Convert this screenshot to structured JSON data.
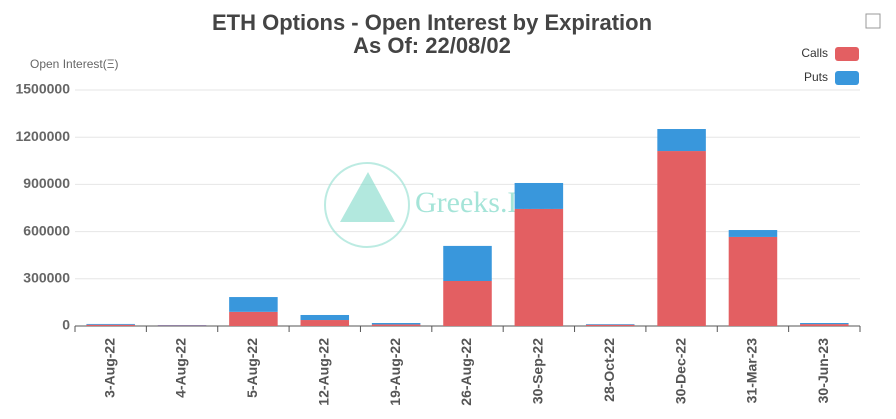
{
  "chart_data": {
    "type": "stacked_bar",
    "title": "ETH Options - Open Interest by Expiration",
    "subtitle": "As Of: 22/08/02",
    "y_label": "Open Interest(Ξ)",
    "watermark": "Greeks.Live",
    "categories": [
      "3-Aug-22",
      "4-Aug-22",
      "5-Aug-22",
      "12-Aug-22",
      "19-Aug-22",
      "26-Aug-22",
      "30-Sep-22",
      "28-Oct-22",
      "30-Dec-22",
      "31-Mar-23",
      "30-Jun-23"
    ],
    "series": [
      {
        "name": "Calls",
        "color": "#e35f62",
        "values": [
          8000,
          3000,
          90000,
          38000,
          10000,
          286000,
          744000,
          8000,
          1112000,
          566000,
          12000
        ]
      },
      {
        "name": "Puts",
        "color": "#3997dc",
        "values": [
          5000,
          3000,
          94000,
          32000,
          9000,
          223000,
          165000,
          4000,
          140000,
          44000,
          7000
        ]
      }
    ],
    "ylim": [
      0,
      1500000
    ],
    "yticks": [
      0,
      300000,
      600000,
      900000,
      1200000,
      1500000
    ],
    "grid": true,
    "legend": "top-right"
  }
}
